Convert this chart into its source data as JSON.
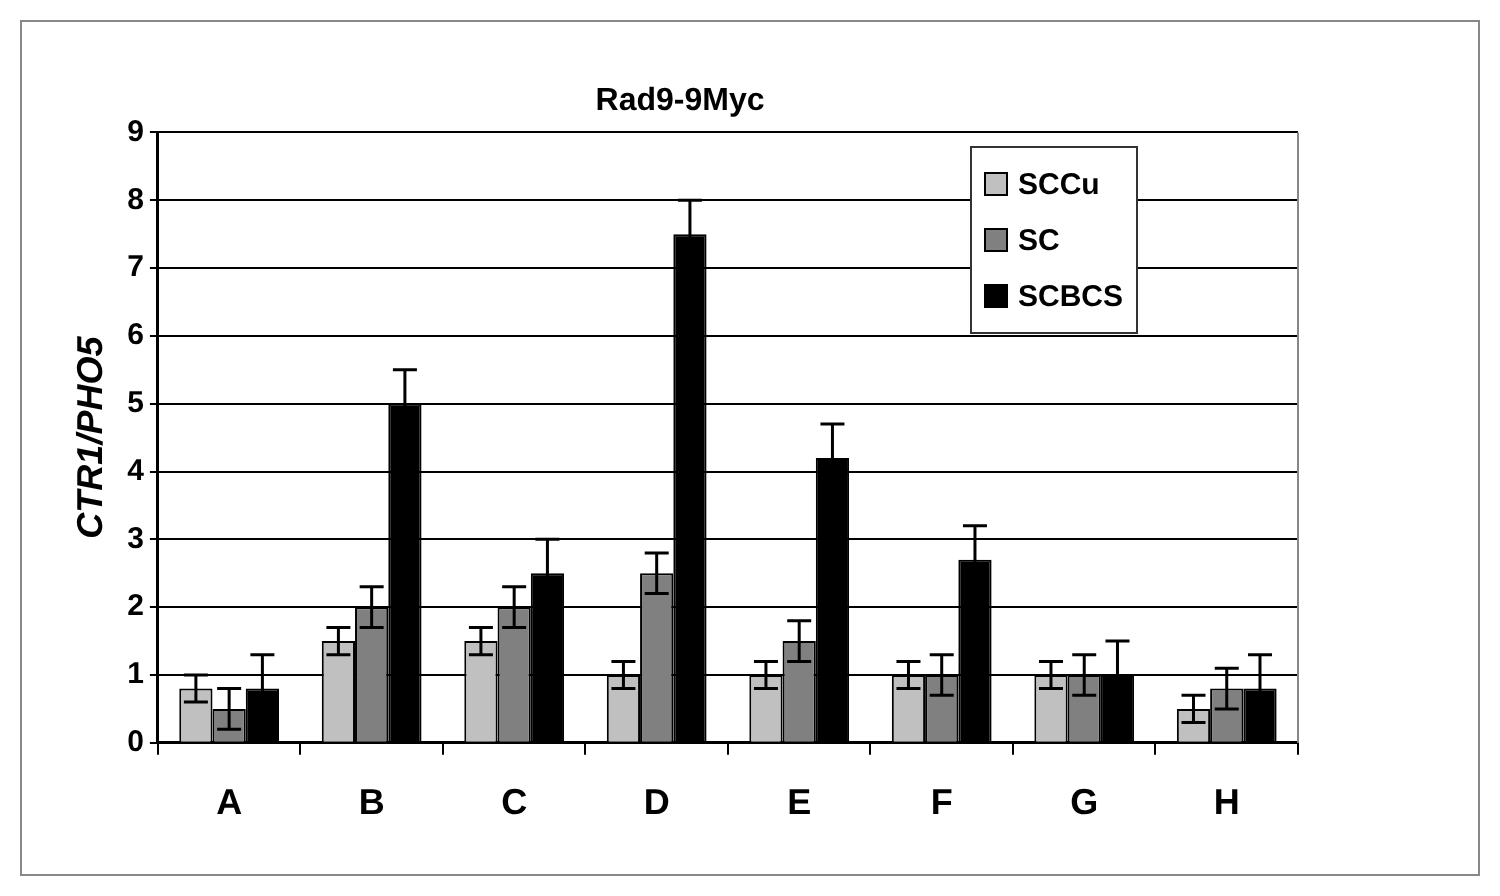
{
  "chart_data": {
    "type": "bar",
    "title": "Rad9-9Myc",
    "ylabel": "CTR1/PHO5",
    "categories": [
      "A",
      "B",
      "C",
      "D",
      "E",
      "F",
      "G",
      "H"
    ],
    "series": [
      {
        "name": "SCCu",
        "color": "#c0c0c0",
        "values": [
          0.8,
          1.5,
          1.5,
          1.0,
          1.0,
          1.0,
          1.0,
          0.5
        ],
        "errors": [
          0.2,
          0.2,
          0.2,
          0.2,
          0.2,
          0.2,
          0.2,
          0.2
        ]
      },
      {
        "name": "SC",
        "color": "#808080",
        "values": [
          0.5,
          2.0,
          2.0,
          2.5,
          1.5,
          1.0,
          1.0,
          0.8
        ],
        "errors": [
          0.3,
          0.3,
          0.3,
          0.3,
          0.3,
          0.3,
          0.3,
          0.3
        ]
      },
      {
        "name": "SCBCS",
        "color": "#000000",
        "values": [
          0.8,
          5.0,
          2.5,
          7.5,
          4.2,
          2.7,
          1.0,
          0.8
        ],
        "errors": [
          0.5,
          0.5,
          0.5,
          0.5,
          0.5,
          0.5,
          0.5,
          0.5
        ]
      }
    ],
    "ylim": [
      0,
      9
    ],
    "yticks": [
      0,
      1,
      2,
      3,
      4,
      5,
      6,
      7,
      8,
      9
    ],
    "grid": "y",
    "legend": "top right"
  }
}
